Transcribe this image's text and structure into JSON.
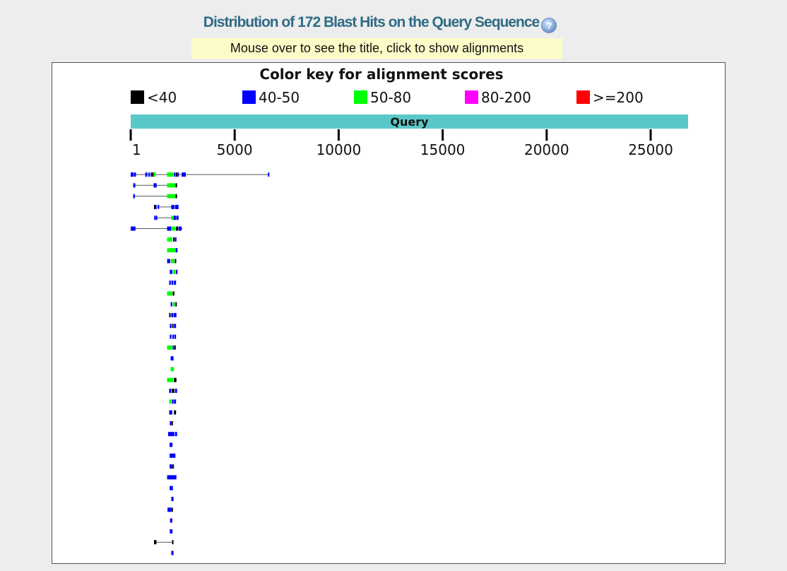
{
  "header": {
    "title": "Distribution of 172 Blast Hits on the Query Sequence",
    "help_icon": "help-icon",
    "hint": "Mouse over to see the title, click to show alignments"
  },
  "color_key": {
    "title": "Color key for alignment scores",
    "items": [
      {
        "label": "<40",
        "color": "#000000"
      },
      {
        "label": "40-50",
        "color": "#0000ff"
      },
      {
        "label": "50-80",
        "color": "#00ff00"
      },
      {
        "label": "80-200",
        "color": "#ff00ff"
      },
      {
        "label": ">=200",
        "color": "#ff0000"
      }
    ]
  },
  "query": {
    "label": "Query",
    "color": "#5bc8c8",
    "length": 26800
  },
  "ruler": {
    "ticks": [
      {
        "value": 1,
        "label": "1"
      },
      {
        "value": 5000,
        "label": "5000"
      },
      {
        "value": 10000,
        "label": "10000"
      },
      {
        "value": 15000,
        "label": "15000"
      },
      {
        "value": 20000,
        "label": "20000"
      },
      {
        "value": 25000,
        "label": "25000"
      }
    ]
  },
  "hits": [
    {
      "line": [
        0,
        6650
      ],
      "segs": [
        [
          0,
          150,
          "b"
        ],
        [
          170,
          250,
          "b"
        ],
        [
          700,
          800,
          "b"
        ],
        [
          850,
          920,
          "b"
        ],
        [
          960,
          1010,
          "b"
        ],
        [
          1030,
          1080,
          "k"
        ],
        [
          1100,
          1200,
          "g"
        ],
        [
          1750,
          2050,
          "g"
        ],
        [
          2080,
          2150,
          "b"
        ],
        [
          2170,
          2230,
          "k"
        ],
        [
          2250,
          2320,
          "b"
        ],
        [
          2450,
          2650,
          "b"
        ],
        [
          6600,
          6650,
          "b"
        ]
      ]
    },
    {
      "line": [
        120,
        2200
      ],
      "segs": [
        [
          120,
          220,
          "b"
        ],
        [
          1100,
          1250,
          "b"
        ],
        [
          1750,
          2150,
          "g"
        ],
        [
          2160,
          2200,
          "k"
        ]
      ]
    },
    {
      "line": [
        120,
        2200
      ],
      "segs": [
        [
          120,
          200,
          "b"
        ],
        [
          1750,
          2150,
          "g"
        ],
        [
          2160,
          2210,
          "k"
        ]
      ]
    },
    {
      "line": [
        1120,
        2300
      ],
      "segs": [
        [
          1120,
          1170,
          "k"
        ],
        [
          1180,
          1220,
          "b"
        ],
        [
          1300,
          1350,
          "b"
        ],
        [
          1950,
          2100,
          "b"
        ],
        [
          2130,
          2300,
          "b"
        ]
      ]
    },
    {
      "line": [
        1130,
        2300
      ],
      "segs": [
        [
          1130,
          1180,
          "b"
        ],
        [
          1210,
          1260,
          "b"
        ],
        [
          1950,
          2050,
          "g"
        ],
        [
          2060,
          2180,
          "b"
        ],
        [
          2200,
          2300,
          "b"
        ]
      ]
    },
    {
      "line": [
        0,
        2500
      ],
      "segs": [
        [
          0,
          230,
          "b"
        ],
        [
          1750,
          1950,
          "b"
        ],
        [
          1980,
          2150,
          "g"
        ],
        [
          2180,
          2280,
          "k"
        ],
        [
          2300,
          2450,
          "b"
        ]
      ]
    },
    {
      "segs": [
        [
          1750,
          2000,
          "g"
        ],
        [
          2040,
          2100,
          "k"
        ],
        [
          2120,
          2200,
          "b"
        ]
      ]
    },
    {
      "segs": [
        [
          1750,
          2150,
          "g"
        ],
        [
          2160,
          2250,
          "b"
        ]
      ]
    },
    {
      "segs": [
        [
          1750,
          1900,
          "b"
        ],
        [
          1930,
          2100,
          "g"
        ],
        [
          2120,
          2180,
          "k"
        ]
      ]
    },
    {
      "segs": [
        [
          1880,
          2000,
          "b"
        ],
        [
          2030,
          2150,
          "g"
        ],
        [
          2170,
          2250,
          "b"
        ]
      ]
    },
    {
      "segs": [
        [
          1850,
          1930,
          "b"
        ],
        [
          1960,
          2050,
          "b"
        ],
        [
          2080,
          2180,
          "b"
        ]
      ]
    },
    {
      "segs": [
        [
          1750,
          2000,
          "g"
        ],
        [
          2020,
          2100,
          "k"
        ]
      ]
    },
    {
      "segs": [
        [
          1920,
          2000,
          "b"
        ],
        [
          2030,
          2130,
          "g"
        ],
        [
          2150,
          2200,
          "k"
        ]
      ]
    },
    {
      "segs": [
        [
          1850,
          1920,
          "k"
        ],
        [
          1950,
          2050,
          "b"
        ],
        [
          2070,
          2200,
          "b"
        ]
      ]
    },
    {
      "segs": [
        [
          1880,
          1960,
          "b"
        ],
        [
          1990,
          2050,
          "k"
        ],
        [
          2080,
          2180,
          "b"
        ]
      ]
    },
    {
      "segs": [
        [
          1880,
          1960,
          "b"
        ],
        [
          2000,
          2080,
          "b"
        ],
        [
          2100,
          2180,
          "b"
        ]
      ]
    },
    {
      "segs": [
        [
          1750,
          2000,
          "g"
        ],
        [
          2020,
          2080,
          "b"
        ],
        [
          2100,
          2140,
          "k"
        ]
      ]
    },
    {
      "segs": [
        [
          1920,
          2060,
          "b"
        ]
      ]
    },
    {
      "segs": [
        [
          1920,
          2080,
          "g"
        ]
      ]
    },
    {
      "segs": [
        [
          1750,
          2050,
          "g"
        ],
        [
          2080,
          2200,
          "k"
        ]
      ]
    },
    {
      "segs": [
        [
          1850,
          1950,
          "b"
        ],
        [
          1980,
          2100,
          "k"
        ],
        [
          2130,
          2230,
          "b"
        ]
      ]
    },
    {
      "segs": [
        [
          1850,
          1950,
          "g"
        ],
        [
          1980,
          2060,
          "b"
        ],
        [
          2080,
          2180,
          "b"
        ]
      ]
    },
    {
      "segs": [
        [
          1850,
          2000,
          "b"
        ],
        [
          2080,
          2180,
          "k"
        ]
      ]
    },
    {
      "segs": [
        [
          1880,
          1950,
          "b"
        ],
        [
          1960,
          2030,
          "k"
        ]
      ]
    },
    {
      "segs": [
        [
          1800,
          2100,
          "b"
        ],
        [
          2130,
          2230,
          "b"
        ]
      ]
    },
    {
      "segs": [
        [
          1870,
          2010,
          "b"
        ]
      ]
    },
    {
      "segs": [
        [
          1870,
          2150,
          "b"
        ]
      ]
    },
    {
      "segs": [
        [
          1870,
          2000,
          "b"
        ],
        [
          2010,
          2050,
          "k"
        ]
      ]
    },
    {
      "segs": [
        [
          1750,
          2200,
          "b"
        ]
      ]
    },
    {
      "segs": [
        [
          1870,
          2030,
          "b"
        ]
      ]
    },
    {
      "segs": [
        [
          1950,
          2060,
          "b"
        ]
      ]
    },
    {
      "segs": [
        [
          1770,
          1950,
          "b"
        ],
        [
          1960,
          2030,
          "k"
        ]
      ]
    },
    {
      "segs": [
        [
          1890,
          2000,
          "b"
        ]
      ]
    },
    {
      "segs": [
        [
          1880,
          2010,
          "b"
        ]
      ]
    },
    {
      "line": [
        1120,
        2050
      ],
      "segs": [
        [
          1120,
          1140,
          "k"
        ],
        [
          1170,
          1190,
          "k"
        ],
        [
          1990,
          2050,
          "k"
        ]
      ]
    },
    {
      "segs": [
        [
          1950,
          2060,
          "b"
        ]
      ]
    }
  ]
}
